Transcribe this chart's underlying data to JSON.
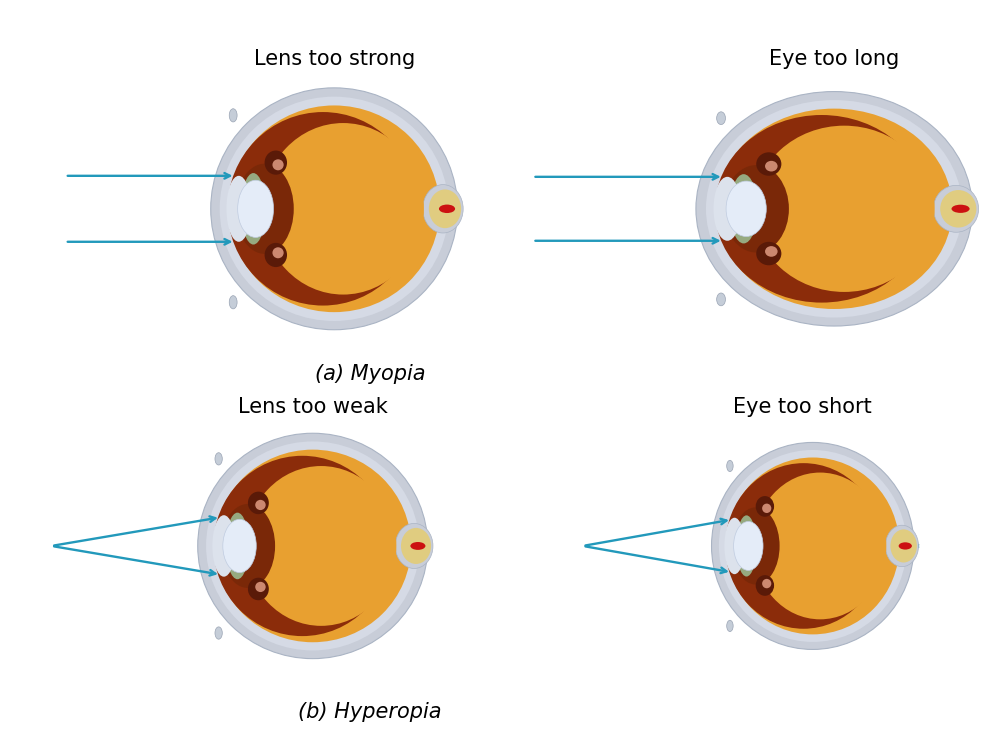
{
  "bg": "#ffffff",
  "arrow_color": "#2299bb",
  "sclera_outer": "#c8cdd8",
  "sclera_inner": "#d5dae5",
  "sclera_white": "#dce2ec",
  "vitreous": "#e8a030",
  "choroid": "#8B2c0a",
  "iris_dark": "#7a2808",
  "ciliary_color": "#6a2010",
  "cornea_green": "#96aa80",
  "lens_white": "#e4ecf8",
  "optic_nerve": "#d4be68",
  "optic_red": "#cc1111",
  "optic_yellow": "#e0cc80",
  "hook_color": "#c8d0de",
  "label_tl": "Lens too strong",
  "label_tr": "Eye too long",
  "label_bl": "Lens too weak",
  "label_br": "Eye too short",
  "caption_a": "(a) Myopia",
  "caption_b": "(b) Hyperopia",
  "label_fs": 15,
  "caption_fs": 15
}
